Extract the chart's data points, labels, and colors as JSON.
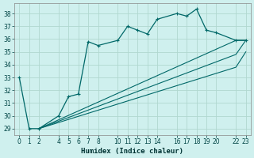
{
  "xlabel": "Humidex (Indice chaleur)",
  "background_color": "#cff0ee",
  "grid_color": "#b0d8d0",
  "line_color": "#006868",
  "ylim": [
    28.5,
    38.8
  ],
  "xlim": [
    -0.5,
    23.5
  ],
  "yticks": [
    29,
    30,
    31,
    32,
    33,
    34,
    35,
    36,
    37,
    38
  ],
  "xticks": [
    0,
    1,
    2,
    4,
    5,
    6,
    7,
    8,
    10,
    11,
    12,
    13,
    14,
    16,
    17,
    18,
    19,
    20,
    22,
    23
  ],
  "series_main": {
    "x": [
      0,
      1,
      2,
      4,
      5,
      6,
      7,
      8,
      10,
      11,
      12,
      13,
      14,
      16,
      17,
      18,
      19,
      20,
      22,
      23
    ],
    "y": [
      33,
      29,
      29,
      30,
      31.5,
      31.7,
      35.8,
      35.5,
      35.9,
      37.0,
      36.7,
      36.4,
      37.55,
      38.0,
      37.8,
      38.35,
      36.7,
      36.5,
      35.9,
      35.9
    ]
  },
  "series_lines": [
    {
      "x": [
        2,
        22,
        23
      ],
      "y": [
        29,
        35.9,
        35.9
      ]
    },
    {
      "x": [
        2,
        22,
        23
      ],
      "y": [
        29,
        34.8,
        35.9
      ]
    },
    {
      "x": [
        2,
        22,
        23
      ],
      "y": [
        29,
        33.8,
        35.0
      ]
    }
  ]
}
